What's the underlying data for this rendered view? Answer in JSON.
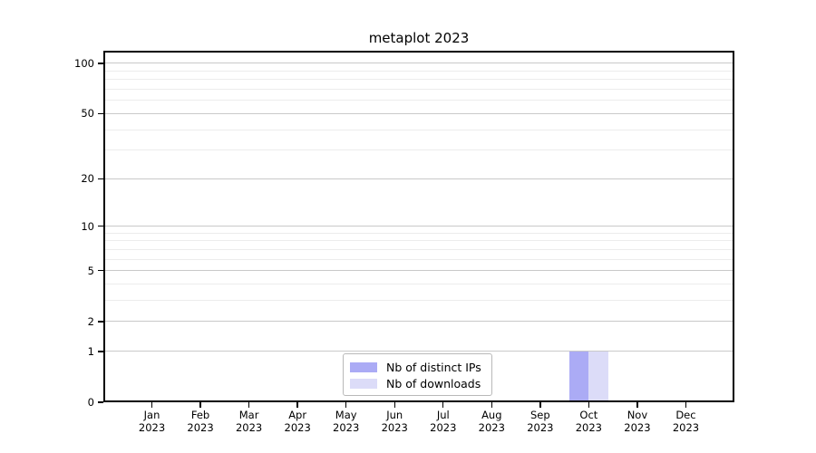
{
  "title": "metaplot 2023",
  "chart_data": {
    "type": "bar",
    "title": "metaplot 2023",
    "x_categories_month": [
      "Jan",
      "Feb",
      "Mar",
      "Apr",
      "May",
      "Jun",
      "Jul",
      "Aug",
      "Sep",
      "Oct",
      "Nov",
      "Dec"
    ],
    "x_year": "2023",
    "series": [
      {
        "name": "Nb of distinct IPs",
        "color": "#ababf5",
        "values": [
          0,
          0,
          0,
          0,
          0,
          0,
          0,
          0,
          0,
          1,
          0,
          0
        ]
      },
      {
        "name": "Nb of downloads",
        "color": "#dcdcf8",
        "values": [
          0,
          0,
          0,
          0,
          0,
          0,
          0,
          0,
          0,
          1,
          0,
          0
        ]
      }
    ],
    "y_axis": {
      "scale": "log1p",
      "ticks_major": [
        0,
        1,
        2,
        5,
        10,
        20,
        50,
        100
      ],
      "ticks_minor": [
        3,
        4,
        6,
        7,
        8,
        9,
        30,
        40,
        60,
        70,
        80,
        90
      ],
      "max": 119
    },
    "grid": {
      "axis": "y",
      "major_color": "#c9c9c9",
      "minor_color": "#ececec"
    },
    "legend_position": "lower-center"
  }
}
